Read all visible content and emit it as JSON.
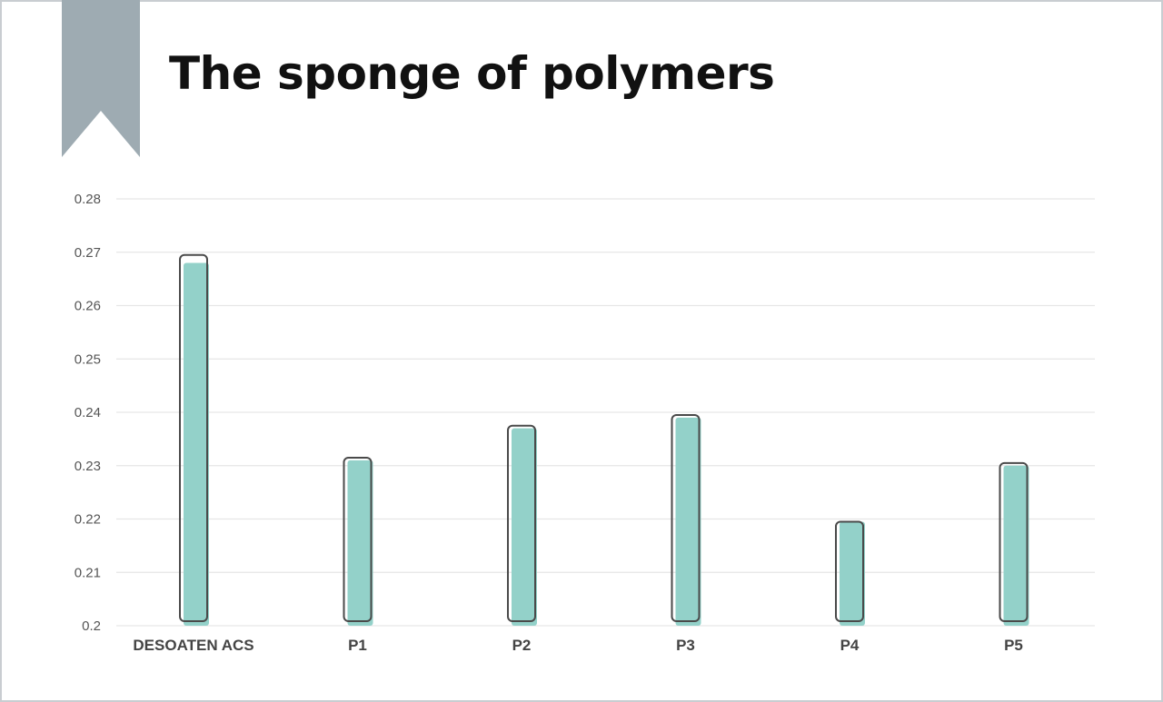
{
  "colors": {
    "bar_fill": "#93d1c9",
    "bar_outline": "#4a4a4a",
    "ribbon": "#9eabb2",
    "grid": "#e6e6e6",
    "frame": "#c9cdd1"
  },
  "decoration": {
    "ribbon_icon": "bookmark-ribbon"
  },
  "chart_data": {
    "type": "bar",
    "title": "The sponge of polymers",
    "xlabel": "",
    "ylabel": "",
    "categories": [
      "DESOATEN ACS",
      "P1",
      "P2",
      "P3",
      "P4",
      "P5"
    ],
    "values": [
      0.268,
      0.231,
      0.237,
      0.239,
      0.2195,
      0.23
    ],
    "outline_values": [
      0.2695,
      0.2315,
      0.2375,
      0.2395,
      0.2195,
      0.2305
    ],
    "ylim": [
      0.2,
      0.28
    ],
    "yticks": [
      "0.2",
      "0.21",
      "0.22",
      "0.23",
      "0.24",
      "0.25",
      "0.26",
      "0.27",
      "0.28"
    ],
    "grid": true,
    "legend": "none"
  }
}
